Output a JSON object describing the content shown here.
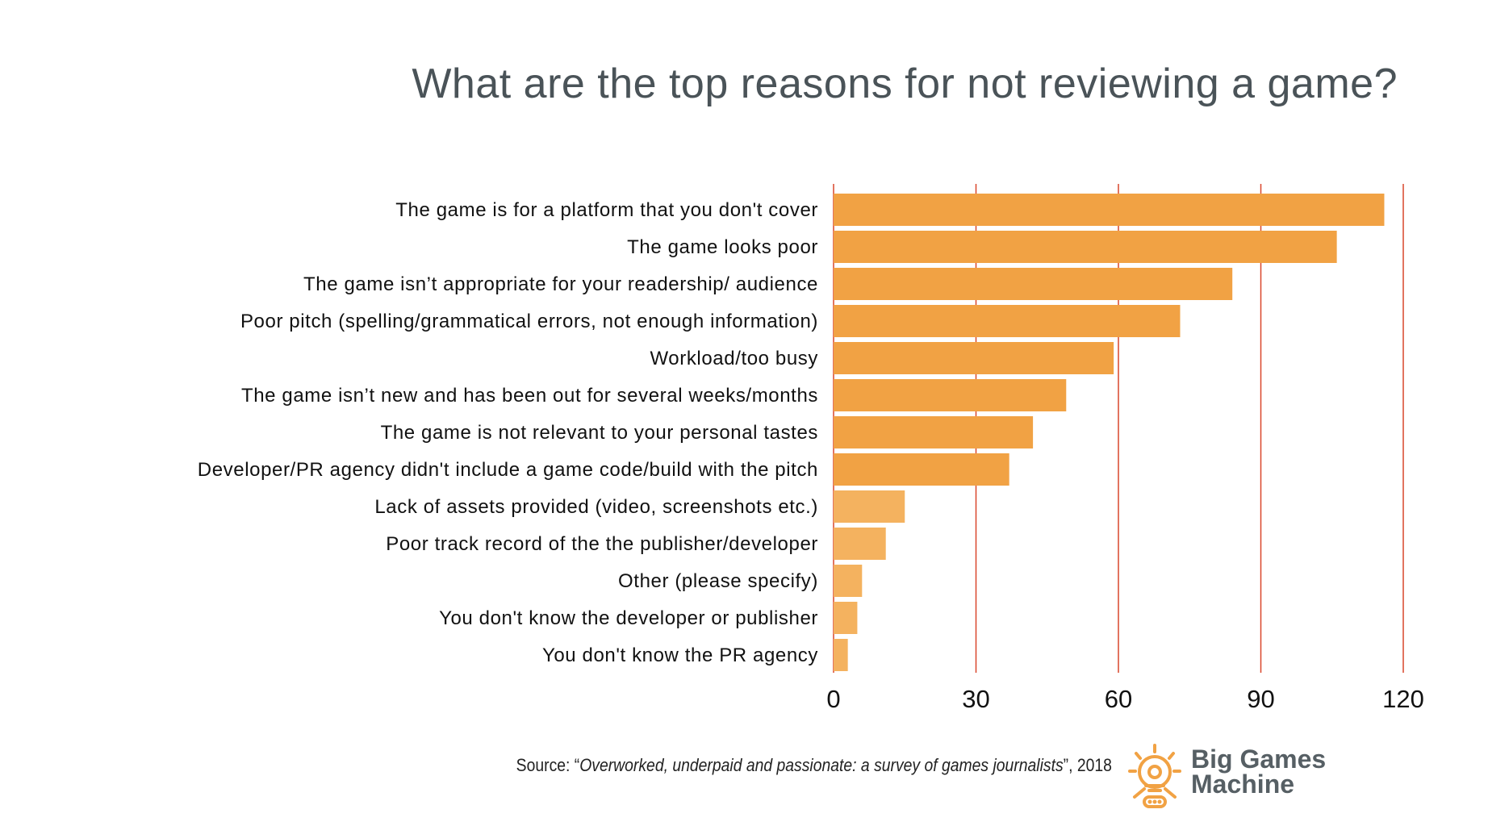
{
  "chart_data": {
    "type": "bar",
    "orientation": "horizontal",
    "title": "What are the top reasons for not reviewing a game?",
    "categories": [
      "The game is for a platform that you don't cover",
      "The game looks poor",
      "The game isn’t appropriate for your readership/ audience",
      "Poor pitch (spelling/grammatical errors, not enough information)",
      "Workload/too busy",
      "The game isn’t new and has been out for several weeks/months",
      "The game is not relevant to your personal tastes",
      "Developer/PR agency didn't include a game code/build with the pitch",
      "Lack of assets provided (video, screenshots etc.)",
      "Poor track record of the the publisher/developer",
      "Other (please specify)",
      "You don't know the developer or publisher",
      "You don't know the PR agency"
    ],
    "values": [
      116,
      106,
      84,
      73,
      59,
      49,
      42,
      37,
      15,
      11,
      6,
      5,
      3
    ],
    "xlim": [
      0,
      120
    ],
    "xticks": [
      0,
      30,
      60,
      90,
      120
    ],
    "xlabel": "",
    "ylabel": "",
    "grid": true,
    "colors": {
      "bar_primary": "#f1a244",
      "bar_light": "#f4b25f",
      "gridline": "#d9472b",
      "title": "#4a5358"
    }
  },
  "source": {
    "prefix": "Source: “",
    "title": "Overworked, underpaid and passionate: a survey of games journalists",
    "suffix": "”, 2018"
  },
  "logo": {
    "line1": "Big Games",
    "line2": "Machine",
    "icon": "robot-icon",
    "color": "#f1a244"
  }
}
